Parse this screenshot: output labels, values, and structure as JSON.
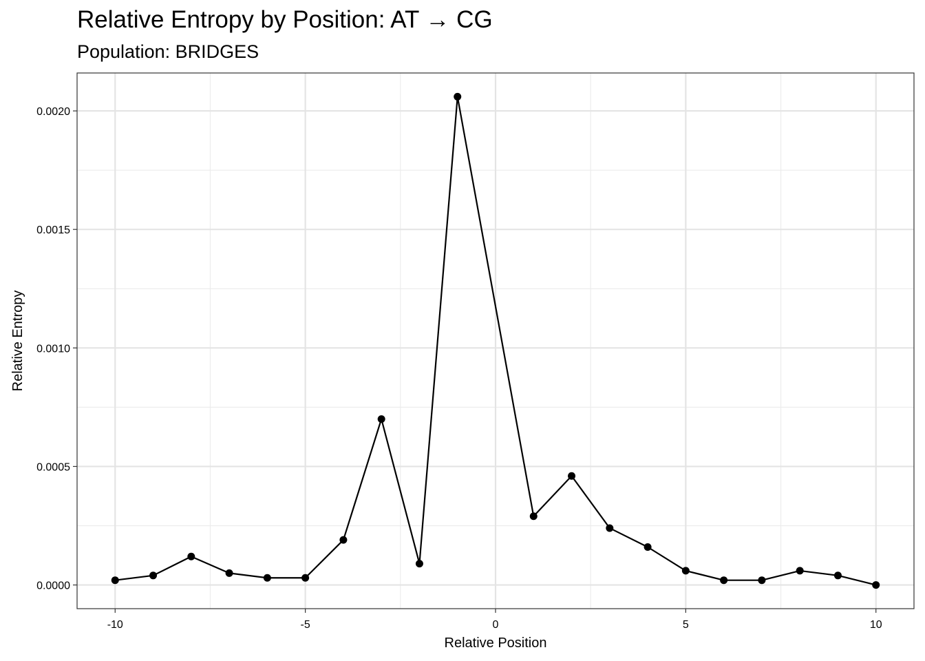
{
  "chart_data": {
    "type": "line",
    "title": "Relative Entropy by Position: AT → CG",
    "subtitle": "Population: BRIDGES",
    "xlabel": "Relative Position",
    "ylabel": "Relative Entropy",
    "xlim": [
      -11,
      11
    ],
    "ylim": [
      -0.0001,
      0.00216
    ],
    "xticks": [
      -10,
      -5,
      0,
      5,
      10
    ],
    "xtick_labels": [
      "-10",
      "-5",
      "0",
      "5",
      "10"
    ],
    "yticks": [
      0,
      0.0005,
      0.001,
      0.0015,
      0.002
    ],
    "ytick_labels": [
      "0.0000",
      "0.0005",
      "0.0010",
      "0.0015",
      "0.0020"
    ],
    "x_minor_gridlines": [
      -7.5,
      -2.5,
      2.5,
      7.5
    ],
    "y_minor_gridlines": [
      0.00025,
      0.00075,
      0.00125,
      0.00175
    ],
    "grid": true,
    "legend": "none",
    "line_color": "#000000",
    "x": [
      -10,
      -9,
      -8,
      -7,
      -6,
      -5,
      -4,
      -3,
      -2,
      -1,
      1,
      2,
      3,
      4,
      5,
      6,
      7,
      8,
      9,
      10
    ],
    "values": [
      2e-05,
      4e-05,
      0.00012,
      5e-05,
      3e-05,
      3e-05,
      0.00019,
      0.0007,
      9e-05,
      0.00206,
      0.00029,
      0.00046,
      0.00024,
      0.00016,
      6e-05,
      2e-05,
      2e-05,
      6e-05,
      4e-05,
      0.0
    ]
  }
}
